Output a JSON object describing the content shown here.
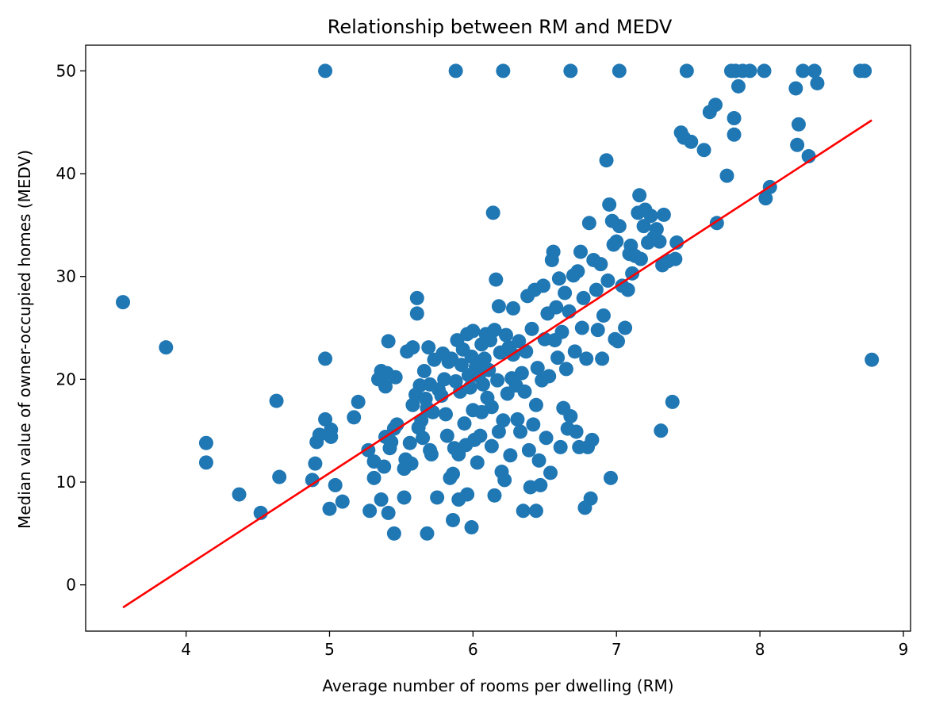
{
  "chart_data": {
    "type": "scatter",
    "title": "Relationship between RM and MEDV",
    "xlabel": "Average number of rooms per dwelling (RM)",
    "ylabel": "Median value of owner-occupied homes (MEDV)",
    "xlim": [
      3.3,
      9.05
    ],
    "ylim": [
      -4.5,
      52.5
    ],
    "xticks": [
      4,
      5,
      6,
      7,
      8,
      9
    ],
    "yticks": [
      0,
      10,
      20,
      30,
      40,
      50
    ],
    "grid": false,
    "legend": "none",
    "point_color": "#1f77b4",
    "line_color": "#ff0000",
    "series": [
      {
        "type": "scatter",
        "points": [
          [
            3.56,
            27.5
          ],
          [
            3.86,
            23.1
          ],
          [
            4.14,
            13.8
          ],
          [
            4.14,
            11.9
          ],
          [
            4.37,
            8.8
          ],
          [
            4.52,
            7.0
          ],
          [
            4.63,
            17.9
          ],
          [
            4.65,
            10.5
          ],
          [
            4.88,
            10.2
          ],
          [
            4.9,
            11.8
          ],
          [
            4.91,
            13.9
          ],
          [
            4.93,
            14.6
          ],
          [
            4.97,
            22.0
          ],
          [
            4.97,
            16.1
          ],
          [
            5.0,
            7.4
          ],
          [
            5.01,
            14.4
          ],
          [
            5.01,
            15.1
          ],
          [
            5.04,
            9.7
          ],
          [
            5.09,
            8.1
          ],
          [
            5.17,
            16.3
          ],
          [
            5.2,
            17.8
          ],
          [
            5.27,
            13.1
          ],
          [
            5.28,
            7.2
          ],
          [
            5.31,
            10.4
          ],
          [
            5.31,
            12.0
          ],
          [
            5.34,
            20.0
          ],
          [
            5.36,
            8.3
          ],
          [
            5.36,
            20.8
          ],
          [
            5.38,
            11.5
          ],
          [
            5.39,
            14.4
          ],
          [
            5.39,
            19.3
          ],
          [
            5.4,
            20.6
          ],
          [
            5.41,
            7.0
          ],
          [
            5.41,
            23.7
          ],
          [
            5.42,
            13.3
          ],
          [
            5.43,
            13.9
          ],
          [
            5.45,
            15.2
          ],
          [
            5.45,
            5.0
          ],
          [
            5.46,
            20.2
          ],
          [
            5.47,
            15.6
          ],
          [
            5.52,
            8.5
          ],
          [
            5.52,
            11.3
          ],
          [
            5.53,
            12.2
          ],
          [
            5.54,
            22.7
          ],
          [
            5.56,
            13.8
          ],
          [
            5.57,
            11.8
          ],
          [
            5.58,
            23.1
          ],
          [
            5.58,
            17.5
          ],
          [
            5.6,
            18.5
          ],
          [
            5.61,
            27.9
          ],
          [
            5.61,
            26.4
          ],
          [
            5.62,
            15.3
          ],
          [
            5.63,
            19.4
          ],
          [
            5.64,
            16.0
          ],
          [
            5.65,
            14.3
          ],
          [
            5.66,
            20.8
          ],
          [
            5.67,
            18.1
          ],
          [
            5.68,
            17.2
          ],
          [
            5.68,
            5.0
          ],
          [
            5.69,
            23.1
          ],
          [
            5.7,
            19.5
          ],
          [
            5.7,
            13.1
          ],
          [
            5.71,
            12.7
          ],
          [
            5.72,
            16.8
          ],
          [
            5.73,
            21.9
          ],
          [
            5.75,
            8.5
          ],
          [
            5.76,
            19.0
          ],
          [
            5.78,
            18.4
          ],
          [
            5.79,
            22.5
          ],
          [
            5.8,
            20.0
          ],
          [
            5.81,
            16.6
          ],
          [
            5.82,
            14.5
          ],
          [
            5.83,
            21.7
          ],
          [
            5.84,
            10.4
          ],
          [
            5.85,
            22.0
          ],
          [
            5.86,
            10.8
          ],
          [
            5.86,
            6.3
          ],
          [
            5.87,
            13.3
          ],
          [
            5.88,
            19.8
          ],
          [
            5.89,
            23.8
          ],
          [
            5.9,
            8.3
          ],
          [
            5.9,
            12.7
          ],
          [
            5.91,
            18.8
          ],
          [
            5.92,
            21.4
          ],
          [
            5.93,
            22.9
          ],
          [
            5.94,
            15.7
          ],
          [
            5.95,
            13.6
          ],
          [
            5.96,
            24.4
          ],
          [
            5.96,
            8.8
          ],
          [
            5.97,
            20.4
          ],
          [
            5.98,
            19.2
          ],
          [
            5.99,
            5.6
          ],
          [
            5.99,
            22.2
          ],
          [
            6.0,
            24.7
          ],
          [
            6.0,
            17.0
          ],
          [
            6.01,
            14.1
          ],
          [
            6.02,
            21.2
          ],
          [
            6.03,
            11.9
          ],
          [
            6.04,
            20.3
          ],
          [
            6.05,
            14.5
          ],
          [
            6.06,
            23.4
          ],
          [
            6.06,
            16.8
          ],
          [
            6.07,
            19.5
          ],
          [
            6.08,
            22.0
          ],
          [
            6.09,
            24.4
          ],
          [
            6.1,
            18.2
          ],
          [
            6.11,
            20.9
          ],
          [
            6.12,
            23.8
          ],
          [
            6.13,
            13.5
          ],
          [
            6.13,
            17.3
          ],
          [
            6.14,
            36.2
          ],
          [
            6.15,
            8.7
          ],
          [
            6.15,
            24.8
          ],
          [
            6.16,
            29.7
          ],
          [
            6.17,
            19.9
          ],
          [
            6.18,
            14.9
          ],
          [
            6.18,
            27.1
          ],
          [
            6.19,
            22.6
          ],
          [
            6.2,
            11.0
          ],
          [
            6.21,
            16.0
          ],
          [
            6.22,
            10.2
          ],
          [
            6.23,
            24.3
          ],
          [
            6.24,
            18.6
          ],
          [
            6.25,
            23.1
          ],
          [
            6.26,
            12.6
          ],
          [
            6.27,
            20.1
          ],
          [
            6.28,
            22.4
          ],
          [
            6.28,
            26.9
          ],
          [
            6.3,
            19.4
          ],
          [
            6.31,
            16.1
          ],
          [
            6.32,
            23.7
          ],
          [
            6.33,
            14.9
          ],
          [
            6.34,
            20.6
          ],
          [
            6.35,
            7.2
          ],
          [
            6.36,
            18.8
          ],
          [
            6.37,
            22.7
          ],
          [
            6.38,
            28.1
          ],
          [
            6.39,
            13.1
          ],
          [
            6.4,
            9.5
          ],
          [
            6.41,
            24.9
          ],
          [
            6.42,
            15.6
          ],
          [
            6.43,
            28.7
          ],
          [
            6.44,
            7.2
          ],
          [
            6.44,
            17.5
          ],
          [
            6.45,
            21.1
          ],
          [
            6.46,
            12.1
          ],
          [
            6.47,
            9.7
          ],
          [
            6.48,
            19.9
          ],
          [
            6.49,
            29.1
          ],
          [
            6.5,
            23.9
          ],
          [
            6.51,
            14.3
          ],
          [
            6.52,
            26.4
          ],
          [
            6.53,
            20.3
          ],
          [
            6.54,
            10.9
          ],
          [
            6.55,
            31.6
          ],
          [
            6.56,
            32.4
          ],
          [
            6.57,
            23.8
          ],
          [
            6.58,
            27.0
          ],
          [
            6.59,
            22.1
          ],
          [
            6.6,
            29.8
          ],
          [
            6.61,
            13.4
          ],
          [
            6.62,
            24.6
          ],
          [
            6.63,
            17.2
          ],
          [
            6.64,
            28.4
          ],
          [
            6.65,
            21.0
          ],
          [
            6.66,
            15.2
          ],
          [
            6.67,
            26.6
          ],
          [
            6.68,
            16.4
          ],
          [
            6.7,
            30.1
          ],
          [
            6.71,
            22.7
          ],
          [
            6.72,
            14.9
          ],
          [
            6.73,
            30.5
          ],
          [
            6.74,
            13.4
          ],
          [
            6.75,
            32.4
          ],
          [
            6.76,
            25.0
          ],
          [
            6.77,
            27.9
          ],
          [
            6.78,
            7.5
          ],
          [
            6.79,
            22.0
          ],
          [
            6.8,
            13.4
          ],
          [
            6.81,
            35.2
          ],
          [
            6.82,
            8.4
          ],
          [
            6.83,
            14.1
          ],
          [
            6.84,
            31.6
          ],
          [
            6.86,
            28.7
          ],
          [
            6.87,
            24.8
          ],
          [
            6.89,
            31.2
          ],
          [
            6.9,
            22.0
          ],
          [
            6.91,
            26.2
          ],
          [
            6.93,
            41.3
          ],
          [
            6.94,
            29.6
          ],
          [
            6.95,
            37.0
          ],
          [
            6.96,
            10.4
          ],
          [
            6.97,
            35.4
          ],
          [
            6.98,
            33.1
          ],
          [
            6.99,
            23.9
          ],
          [
            7.0,
            33.4
          ],
          [
            7.01,
            23.7
          ],
          [
            7.02,
            34.9
          ],
          [
            7.04,
            29.1
          ],
          [
            7.06,
            25.0
          ],
          [
            7.08,
            28.7
          ],
          [
            7.09,
            32.2
          ],
          [
            7.1,
            33.0
          ],
          [
            7.11,
            30.3
          ],
          [
            7.13,
            32.0
          ],
          [
            7.15,
            36.2
          ],
          [
            7.16,
            37.9
          ],
          [
            7.17,
            31.7
          ],
          [
            7.19,
            34.9
          ],
          [
            7.2,
            36.5
          ],
          [
            7.22,
            33.3
          ],
          [
            7.24,
            35.9
          ],
          [
            7.26,
            33.8
          ],
          [
            7.28,
            34.6
          ],
          [
            7.3,
            33.4
          ],
          [
            7.31,
            15.0
          ],
          [
            7.32,
            31.1
          ],
          [
            7.33,
            36.0
          ],
          [
            7.36,
            31.5
          ],
          [
            7.39,
            17.8
          ],
          [
            7.41,
            31.7
          ],
          [
            7.42,
            33.3
          ],
          [
            7.45,
            44.0
          ],
          [
            7.47,
            43.5
          ],
          [
            7.52,
            43.1
          ],
          [
            7.61,
            42.3
          ],
          [
            7.65,
            46.0
          ],
          [
            7.69,
            46.7
          ],
          [
            7.7,
            35.2
          ],
          [
            7.77,
            39.8
          ],
          [
            7.82,
            43.8
          ],
          [
            7.82,
            45.4
          ],
          [
            7.85,
            48.5
          ],
          [
            8.04,
            37.6
          ],
          [
            8.07,
            38.7
          ],
          [
            8.25,
            48.3
          ],
          [
            8.26,
            42.8
          ],
          [
            8.27,
            44.8
          ],
          [
            8.34,
            41.7
          ],
          [
            8.4,
            48.8
          ],
          [
            8.78,
            21.9
          ],
          [
            4.97,
            50.0
          ],
          [
            5.88,
            50.0
          ],
          [
            6.21,
            50.0
          ],
          [
            6.68,
            50.0
          ],
          [
            7.02,
            50.0
          ],
          [
            7.49,
            50.0
          ],
          [
            7.8,
            50.0
          ],
          [
            7.83,
            50.0
          ],
          [
            7.88,
            50.0
          ],
          [
            7.93,
            50.0
          ],
          [
            8.03,
            50.0
          ],
          [
            8.3,
            50.0
          ],
          [
            8.38,
            50.0
          ],
          [
            8.7,
            50.0
          ],
          [
            8.73,
            50.0
          ]
        ]
      },
      {
        "type": "line",
        "points": [
          [
            3.56,
            -2.2
          ],
          [
            8.78,
            45.2
          ]
        ]
      }
    ]
  }
}
